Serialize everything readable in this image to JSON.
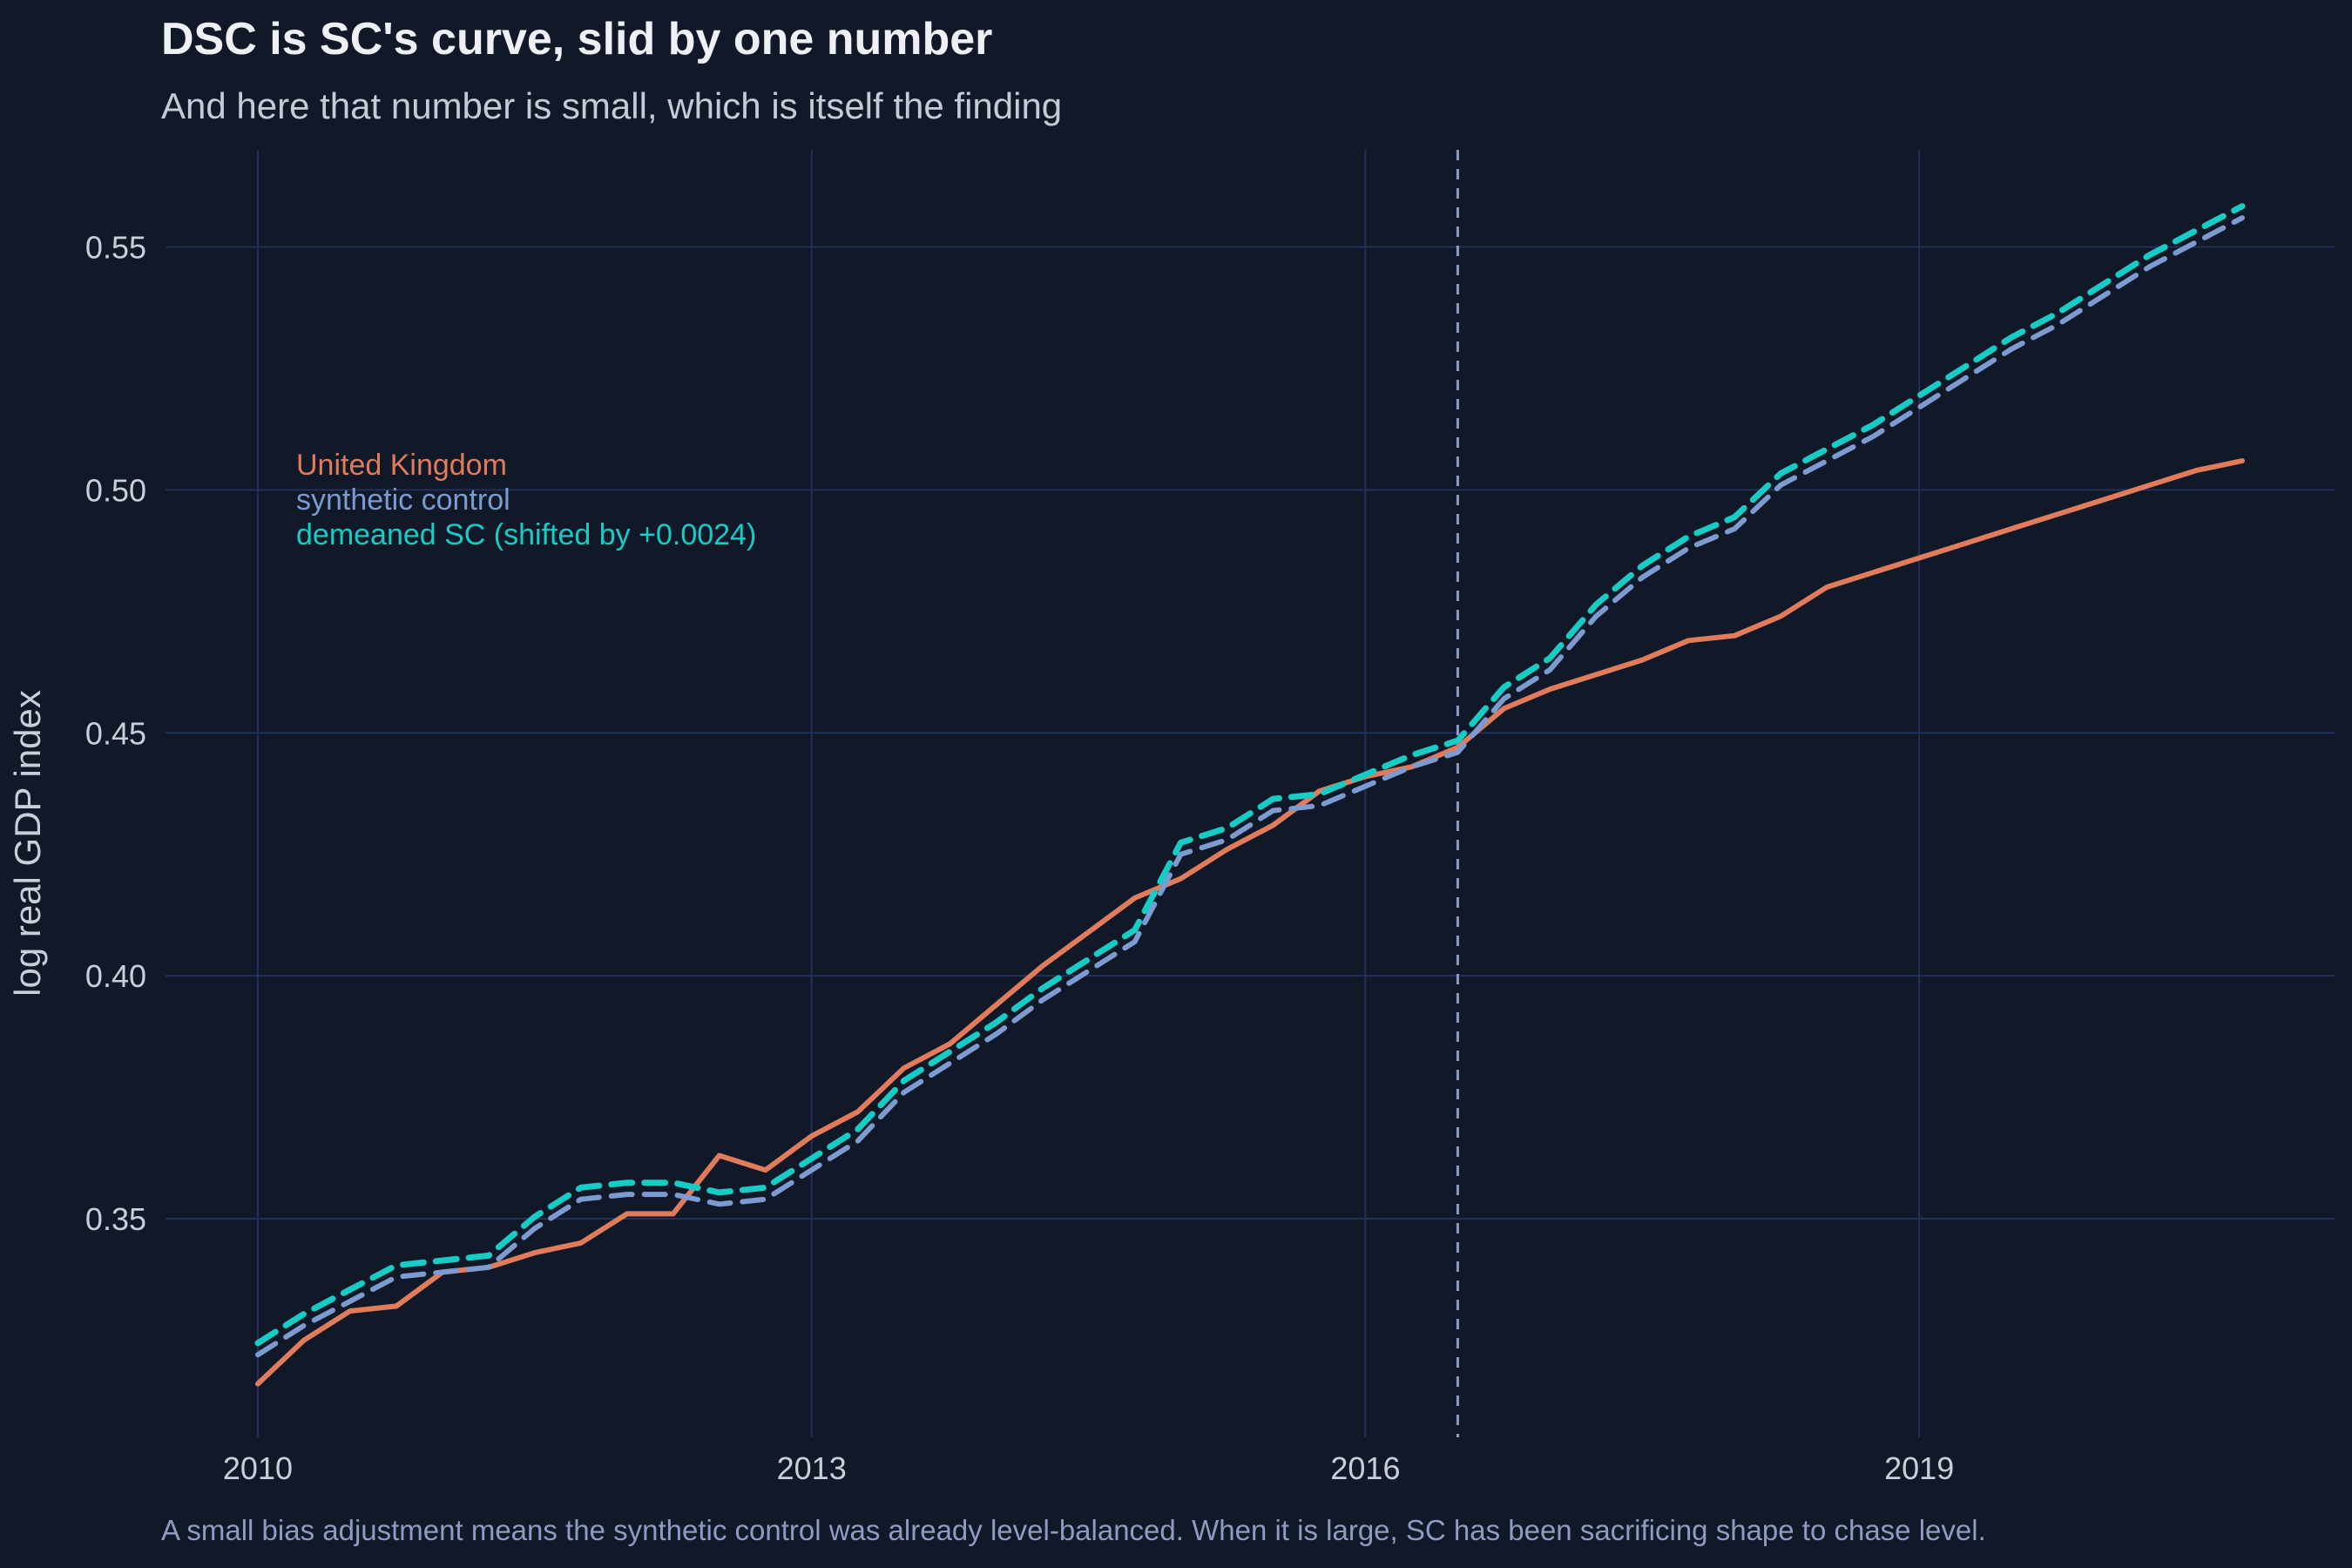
{
  "chart_data": {
    "type": "line",
    "title": "DSC is SC's curve, slid by one number",
    "subtitle": "And here that number is small, which is itself the finding",
    "caption": "A small bias adjustment means the synthetic control was already level-balanced. When it is large, SC has been sacrificing shape to chase level.",
    "xlabel": "",
    "ylabel": "log real GDP index",
    "xlim": [
      2009.5,
      2021.25
    ],
    "ylim": [
      0.305,
      0.57
    ],
    "x_ticks": [
      2010,
      2013,
      2016,
      2019
    ],
    "x_tick_labels": [
      "2010",
      "2013",
      "2016",
      "2019"
    ],
    "y_ticks": [
      0.35,
      0.4,
      0.45,
      0.5,
      0.55
    ],
    "y_tick_labels": [
      "0.35",
      "0.40",
      "0.45",
      "0.50",
      "0.55"
    ],
    "grid": true,
    "treatment_x": 2016.5,
    "legend_placement": "inline top-left",
    "x": [
      2010.0,
      2010.25,
      2010.5,
      2010.75,
      2011.0,
      2011.25,
      2011.5,
      2011.75,
      2012.0,
      2012.25,
      2012.5,
      2012.75,
      2013.0,
      2013.25,
      2013.5,
      2013.75,
      2014.0,
      2014.25,
      2014.5,
      2014.75,
      2015.0,
      2015.25,
      2015.5,
      2015.75,
      2016.0,
      2016.25,
      2016.5,
      2016.75,
      2017.0,
      2017.25,
      2017.5,
      2017.75,
      2018.0,
      2018.25,
      2018.5,
      2018.75,
      2019.0,
      2019.25,
      2019.5,
      2019.75,
      2020.0,
      2020.25,
      2020.5,
      2020.75
    ],
    "series": [
      {
        "name": "United Kingdom",
        "color": "#e07b5b",
        "dash": "solid",
        "values": [
          0.316,
          0.325,
          0.331,
          0.332,
          0.339,
          0.34,
          0.343,
          0.345,
          0.351,
          0.351,
          0.363,
          0.36,
          0.367,
          0.372,
          0.381,
          0.386,
          0.394,
          0.402,
          0.409,
          0.416,
          0.42,
          0.426,
          0.431,
          0.438,
          0.441,
          0.443,
          0.447,
          0.455,
          0.459,
          0.462,
          0.465,
          0.469,
          0.47,
          0.474,
          0.48,
          0.483,
          0.486,
          0.489,
          0.492,
          0.495,
          0.498,
          0.501,
          0.504,
          0.506
        ]
      },
      {
        "name": "synthetic control",
        "color": "#7b9bd1",
        "dash": "dashed",
        "values": [
          0.322,
          0.328,
          0.333,
          0.338,
          0.339,
          0.34,
          0.348,
          0.354,
          0.355,
          0.355,
          0.353,
          0.354,
          0.36,
          0.366,
          0.376,
          0.382,
          0.388,
          0.395,
          0.401,
          0.407,
          0.425,
          0.428,
          0.434,
          0.435,
          0.439,
          0.443,
          0.446,
          0.457,
          0.463,
          0.474,
          0.482,
          0.488,
          0.492,
          0.501,
          0.506,
          0.511,
          0.517,
          0.523,
          0.529,
          0.534,
          0.54,
          0.546,
          0.551,
          0.556
        ]
      },
      {
        "name": "demeaned SC (shifted by +0.0024)",
        "color": "#17ccc5",
        "dash": "dashed",
        "values": [
          0.3244,
          0.3304,
          0.3354,
          0.3404,
          0.3414,
          0.3424,
          0.3504,
          0.3564,
          0.3574,
          0.3574,
          0.3554,
          0.3564,
          0.3624,
          0.3684,
          0.3784,
          0.3844,
          0.3904,
          0.3974,
          0.4034,
          0.4094,
          0.4274,
          0.4304,
          0.4364,
          0.4374,
          0.4414,
          0.4454,
          0.4484,
          0.4594,
          0.4654,
          0.4764,
          0.4844,
          0.4904,
          0.4944,
          0.5034,
          0.5084,
          0.5134,
          0.5194,
          0.5254,
          0.5314,
          0.5364,
          0.5424,
          0.5484,
          0.5534,
          0.5584
        ]
      }
    ]
  },
  "colors": {
    "background": "#111827",
    "grid": "#23305a",
    "title": "#eef0f6",
    "subtitle": "#c5cad6",
    "axis_text": "#c9ced9",
    "caption": "#8f9bc0",
    "treatment_line": "#8b9fc4"
  }
}
